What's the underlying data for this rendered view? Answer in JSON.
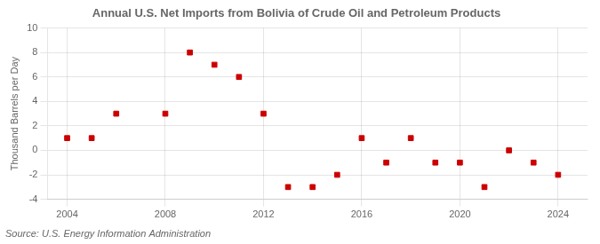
{
  "chart_data": {
    "type": "scatter",
    "title": "Annual U.S. Net Imports from Bolivia of Crude Oil and Petroleum Products",
    "ylabel": "Thousand Barrels per Day",
    "annotations": [
      "Source: U.S. Energy Information Administration"
    ],
    "x": [
      2004,
      2005,
      2006,
      2008,
      2009,
      2010,
      2011,
      2012,
      2013,
      2014,
      2015,
      2016,
      2017,
      2018,
      2019,
      2020,
      2021,
      2022,
      2023,
      2024
    ],
    "values": [
      1,
      1,
      3,
      3,
      8,
      7,
      6,
      3,
      -3,
      -3,
      -2,
      1,
      -1,
      1,
      -1,
      -1,
      -3,
      0,
      -1,
      -2
    ],
    "color": "#cc0000",
    "marker": "square",
    "xlim": [
      2003.2,
      2025.2
    ],
    "xticks": [
      2004,
      2008,
      2012,
      2016,
      2020,
      2024
    ],
    "ylim": [
      -4,
      10
    ],
    "yticks": [
      -4,
      -2,
      0,
      2,
      4,
      6,
      8,
      10
    ],
    "grid": true
  }
}
